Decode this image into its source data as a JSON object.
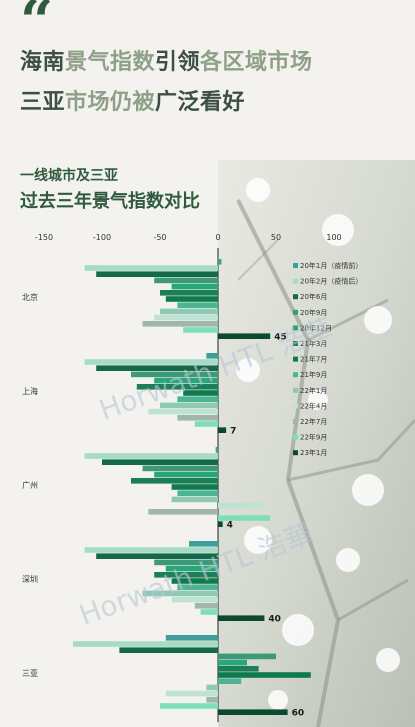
{
  "header": {
    "quote_mark": "“",
    "line1": [
      {
        "text": "海南",
        "strong": true
      },
      {
        "text": "景气指数",
        "strong": false
      },
      {
        "text": "引领",
        "strong": true
      },
      {
        "text": "各区域市场",
        "strong": false
      }
    ],
    "line2": [
      {
        "text": "三亚",
        "strong": true
      },
      {
        "text": "市场仍被",
        "strong": false
      },
      {
        "text": "广泛看好",
        "strong": true
      }
    ],
    "subtitle1": "一线城市及三亚",
    "subtitle2": "过去三年景气指数对比"
  },
  "watermark": {
    "text": "Horwath HTL 浩華"
  },
  "colors": {
    "dark_green": "#2f5a3e",
    "headline_dark": "#3c4f44",
    "headline_light": "#8ea087"
  },
  "chart_data": {
    "type": "bar",
    "orientation": "horizontal",
    "xlim": [
      -150,
      150
    ],
    "xticks": [
      -150,
      -100,
      -50,
      0,
      50,
      100
    ],
    "grid": false,
    "legend_position": "right",
    "categories": [
      "北京",
      "上海",
      "广州",
      "深圳",
      "三亚"
    ],
    "series": [
      {
        "name": "20年1月（疫情前）",
        "color": "#3f9e9a",
        "values": [
          3,
          -10,
          -2,
          -25,
          -45
        ]
      },
      {
        "name": "20年2月（疫情后）",
        "color": "#a6dcc6",
        "values": [
          -115,
          -115,
          -115,
          -115,
          -125
        ]
      },
      {
        "name": "20年6月",
        "color": "#14694a",
        "values": [
          -105,
          -105,
          -100,
          -105,
          -85
        ]
      },
      {
        "name": "20年9月",
        "color": "#3e9a76",
        "values": [
          -55,
          -75,
          -65,
          -55,
          50
        ]
      },
      {
        "name": "20年12月",
        "color": "#2aa67d",
        "values": [
          -40,
          -55,
          -55,
          -45,
          25
        ]
      },
      {
        "name": "21年3月",
        "color": "#1c7f56",
        "values": [
          -50,
          -70,
          -75,
          -55,
          35
        ]
      },
      {
        "name": "21年7月",
        "color": "#0f7a4d",
        "values": [
          -45,
          -30,
          -40,
          -40,
          80
        ]
      },
      {
        "name": "21年9月",
        "color": "#4db493",
        "values": [
          -35,
          -35,
          -35,
          -35,
          20
        ]
      },
      {
        "name": "22年1月",
        "color": "#8fc9b3",
        "values": [
          -50,
          -50,
          -40,
          -65,
          -10
        ]
      },
      {
        "name": "22年4月",
        "color": "#bfe3d2",
        "values": [
          -55,
          -60,
          40,
          -40,
          -45
        ]
      },
      {
        "name": "22年7月",
        "color": "#9fb6a8",
        "values": [
          -65,
          -35,
          -60,
          -20,
          -10
        ]
      },
      {
        "name": "22年9月",
        "color": "#7ddfb7",
        "values": [
          -30,
          -20,
          45,
          -15,
          -50
        ]
      },
      {
        "name": "23年1月",
        "color": "#0b4a2e",
        "values": [
          45,
          7,
          4,
          40,
          60
        ]
      }
    ],
    "data_labels": [
      {
        "category": "北京",
        "series": "23年1月",
        "value": 45
      },
      {
        "category": "上海",
        "series": "23年1月",
        "value": 7
      },
      {
        "category": "广州",
        "series": "23年1月",
        "value": 4
      },
      {
        "category": "深圳",
        "series": "23年1月",
        "value": 40
      },
      {
        "category": "三亚",
        "series": "23年1月",
        "value": 60
      }
    ]
  }
}
